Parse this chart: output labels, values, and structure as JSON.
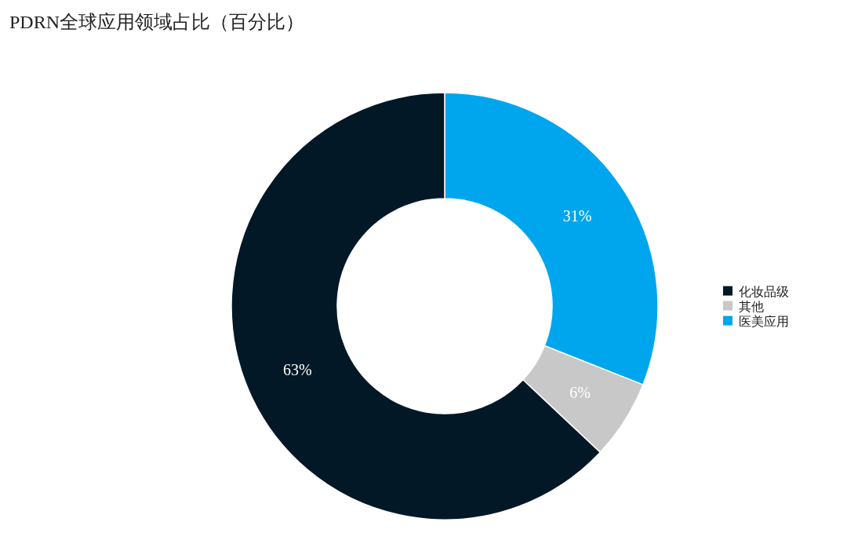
{
  "chart_data": {
    "type": "donut",
    "title": "PDRN全球应用领域占比（百分比）",
    "categories": [
      "医美应用",
      "其他",
      "化妆品级"
    ],
    "values": [
      31,
      6,
      63
    ],
    "colors": [
      "#00a6ed",
      "#c8c8c8",
      "#021826"
    ],
    "value_labels": [
      "31%",
      "6%",
      "63%"
    ],
    "legend": "right"
  }
}
